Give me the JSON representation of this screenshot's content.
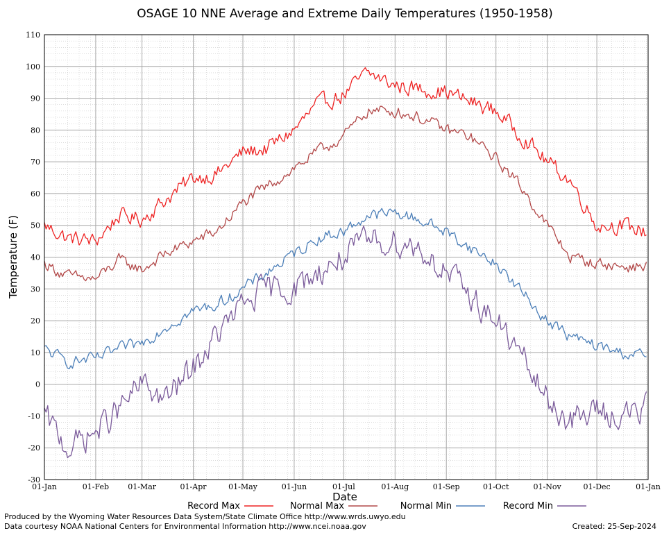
{
  "chart_data": {
    "type": "line",
    "title": "OSAGE 10 NNE Average and Extreme Daily Temperatures (1950-1958)",
    "xlabel": "Date",
    "ylabel": "Temperature (F)",
    "ylim": [
      -30,
      110
    ],
    "y_ticks": [
      "-30",
      "-20",
      "-10",
      "0",
      "10",
      "20",
      "30",
      "40",
      "50",
      "60",
      "70",
      "80",
      "90",
      "100",
      "110"
    ],
    "x_ticks": [
      "01-Jan",
      "01-Feb",
      "01-Mar",
      "01-Apr",
      "01-May",
      "01-Jun",
      "01-Jul",
      "01-Aug",
      "01-Sep",
      "01-Oct",
      "01-Nov",
      "01-Dec",
      "01-Jan"
    ],
    "grid": true,
    "legend_position": "bottom",
    "colors": {
      "record_max": "#ee2222",
      "normal_max": "#b24848",
      "normal_min": "#4c7fb8",
      "record_min": "#7a5a9a"
    },
    "series": [
      {
        "name": "Record Max",
        "key": "record_max",
        "months": [
          "01-Jan",
          "15-Jan",
          "01-Feb",
          "15-Feb",
          "01-Mar",
          "15-Mar",
          "01-Apr",
          "15-Apr",
          "01-May",
          "15-May",
          "01-Jun",
          "15-Jun",
          "01-Jul",
          "15-Jul",
          "01-Aug",
          "15-Aug",
          "01-Sep",
          "15-Sep",
          "01-Oct",
          "15-Oct",
          "01-Nov",
          "15-Nov",
          "01-Dec",
          "15-Dec",
          "31-Dec"
        ],
        "values": [
          50,
          46,
          45,
          53,
          52,
          58,
          65,
          66,
          73,
          74,
          80,
          88,
          91,
          98,
          94,
          93,
          92,
          89,
          86,
          79,
          70,
          64,
          50,
          50,
          48
        ]
      },
      {
        "name": "Normal Max",
        "key": "normal_max",
        "months": [
          "01-Jan",
          "15-Jan",
          "01-Feb",
          "15-Feb",
          "01-Mar",
          "15-Mar",
          "01-Apr",
          "15-Apr",
          "01-May",
          "15-May",
          "01-Jun",
          "15-Jun",
          "01-Jul",
          "15-Jul",
          "01-Aug",
          "15-Aug",
          "01-Sep",
          "15-Sep",
          "01-Oct",
          "15-Oct",
          "01-Nov",
          "15-Nov",
          "01-Dec",
          "15-Dec",
          "31-Dec"
        ],
        "values": [
          38,
          34,
          33,
          39,
          36,
          41,
          45,
          48,
          57,
          62,
          68,
          73,
          78,
          86,
          86,
          84,
          80,
          78,
          71,
          63,
          50,
          40,
          38,
          37,
          37
        ]
      },
      {
        "name": "Normal Min",
        "key": "normal_min",
        "months": [
          "01-Jan",
          "15-Jan",
          "01-Feb",
          "15-Feb",
          "01-Mar",
          "15-Mar",
          "01-Apr",
          "15-Apr",
          "01-May",
          "15-May",
          "01-Jun",
          "15-Jun",
          "01-Jul",
          "15-Jul",
          "01-Aug",
          "15-Aug",
          "01-Sep",
          "15-Sep",
          "01-Oct",
          "15-Oct",
          "01-Nov",
          "15-Nov",
          "01-Dec",
          "15-Dec",
          "31-Dec"
        ],
        "values": [
          11,
          7,
          8,
          11,
          13,
          18,
          23,
          25,
          30,
          35,
          41,
          46,
          48,
          53,
          54,
          52,
          48,
          43,
          38,
          30,
          20,
          15,
          12,
          10,
          9
        ]
      },
      {
        "name": "Record Min",
        "key": "record_min",
        "months": [
          "01-Jan",
          "15-Jan",
          "01-Feb",
          "15-Feb",
          "01-Mar",
          "15-Mar",
          "01-Apr",
          "15-Apr",
          "01-May",
          "15-May",
          "01-Jun",
          "15-Jun",
          "01-Jul",
          "15-Jul",
          "01-Aug",
          "15-Aug",
          "01-Sep",
          "15-Sep",
          "01-Oct",
          "15-Oct",
          "01-Nov",
          "15-Nov",
          "01-Dec",
          "15-Dec",
          "31-Dec"
        ],
        "values": [
          -10,
          -20,
          -15,
          -8,
          0,
          -5,
          5,
          15,
          25,
          30,
          30,
          35,
          40,
          45,
          45,
          43,
          35,
          28,
          20,
          10,
          -5,
          -12,
          -8,
          -10,
          -8
        ]
      }
    ]
  },
  "footer": {
    "produced_by": "Produced by the Wyoming Water Resources Data System/State Climate Office http://www.wrds.uwyo.edu",
    "courtesy": "Data courtesy NOAA National Centers for Environmental Information http://www.ncei.noaa.gov",
    "created": "Created:  25-Sep-2024"
  }
}
